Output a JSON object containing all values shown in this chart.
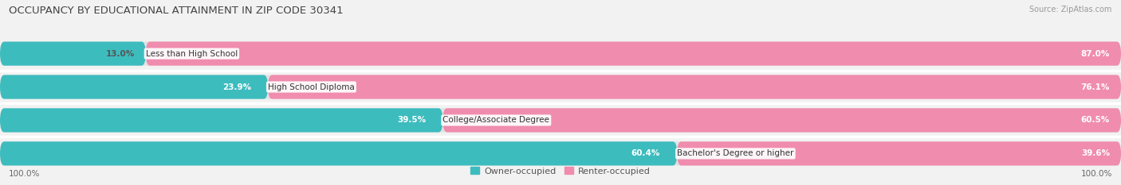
{
  "title": "OCCUPANCY BY EDUCATIONAL ATTAINMENT IN ZIP CODE 30341",
  "source": "Source: ZipAtlas.com",
  "categories": [
    "Less than High School",
    "High School Diploma",
    "College/Associate Degree",
    "Bachelor's Degree or higher"
  ],
  "owner_values": [
    13.0,
    23.9,
    39.5,
    60.4
  ],
  "renter_values": [
    87.0,
    76.1,
    60.5,
    39.6
  ],
  "owner_color": "#3dbcbe",
  "renter_color": "#f08cae",
  "bg_color": "#f2f2f2",
  "bar_bg_color": "#e2e2e2",
  "sep_color": "#ffffff",
  "title_fontsize": 9.5,
  "source_fontsize": 7,
  "value_fontsize": 7.5,
  "cat_fontsize": 7.5,
  "tick_fontsize": 7.5,
  "legend_fontsize": 8
}
